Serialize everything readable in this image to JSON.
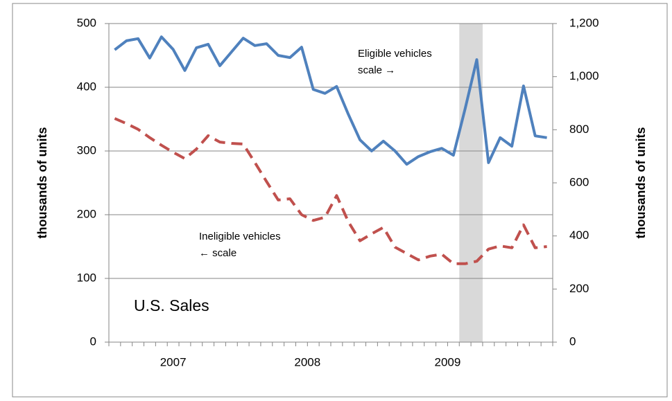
{
  "chart_data": {
    "type": "line",
    "annotations": {
      "eligible_1": "Eligible vehicles",
      "eligible_2": "scale →",
      "ineligible_1": "Ineligible vehicles",
      "ineligible_2": "← scale",
      "region": "U.S. Sales"
    },
    "ylabel": "thousands of units",
    "y2label": "thousands of units",
    "categories": [
      null,
      null,
      null,
      null,
      null,
      null,
      null,
      null,
      null,
      null,
      null,
      null,
      null,
      null,
      null,
      null,
      null,
      null,
      null,
      null,
      null,
      null,
      null,
      null,
      null,
      null,
      null,
      null,
      null,
      null,
      null,
      null,
      null,
      null,
      null,
      null,
      null,
      null
    ],
    "x_groups": [
      {
        "label": "2007",
        "span": 11
      },
      {
        "label": "2008",
        "span": 12
      },
      {
        "label": "2009",
        "span": 12
      }
    ],
    "shade_bands": [
      30,
      31
    ],
    "shade_color": "#d9d9d9",
    "series": [
      {
        "color": "#4f81bd",
        "axis": "y2",
        "dashed": false,
        "values": [
          1101,
          1135,
          1143,
          1070,
          1150,
          1103,
          1023,
          1109,
          1122,
          1041,
          1093,
          1145,
          1117,
          1124,
          1080,
          1072,
          1111,
          952,
          937,
          963,
          858,
          762,
          720,
          757,
          720,
          670,
          699,
          717,
          730,
          704,
          879,
          1064,
          676,
          770,
          738,
          965,
          777,
          770
        ]
      },
      {
        "color": "#c0504d",
        "axis": "y",
        "dashed": true,
        "values": [
          351,
          343,
          334,
          321,
          309,
          298,
          288,
          303,
          324,
          314,
          312,
          311,
          282,
          252,
          223,
          225,
          200,
          191,
          196,
          230,
          189,
          159,
          170,
          180,
          149,
          139,
          129,
          135,
          138,
          123,
          123,
          127,
          146,
          151,
          148,
          184,
          148,
          150
        ]
      }
    ],
    "ylim": [
      0,
      500
    ],
    "yticks": [
      0,
      100,
      200,
      300,
      400,
      500
    ],
    "y2lim": [
      0,
      1200
    ],
    "y2ticks": [
      0,
      200,
      400,
      600,
      800,
      {
        "value": 1000,
        "label": "1,000"
      },
      {
        "value": 1200,
        "label": "1,200"
      }
    ],
    "grid": true
  }
}
